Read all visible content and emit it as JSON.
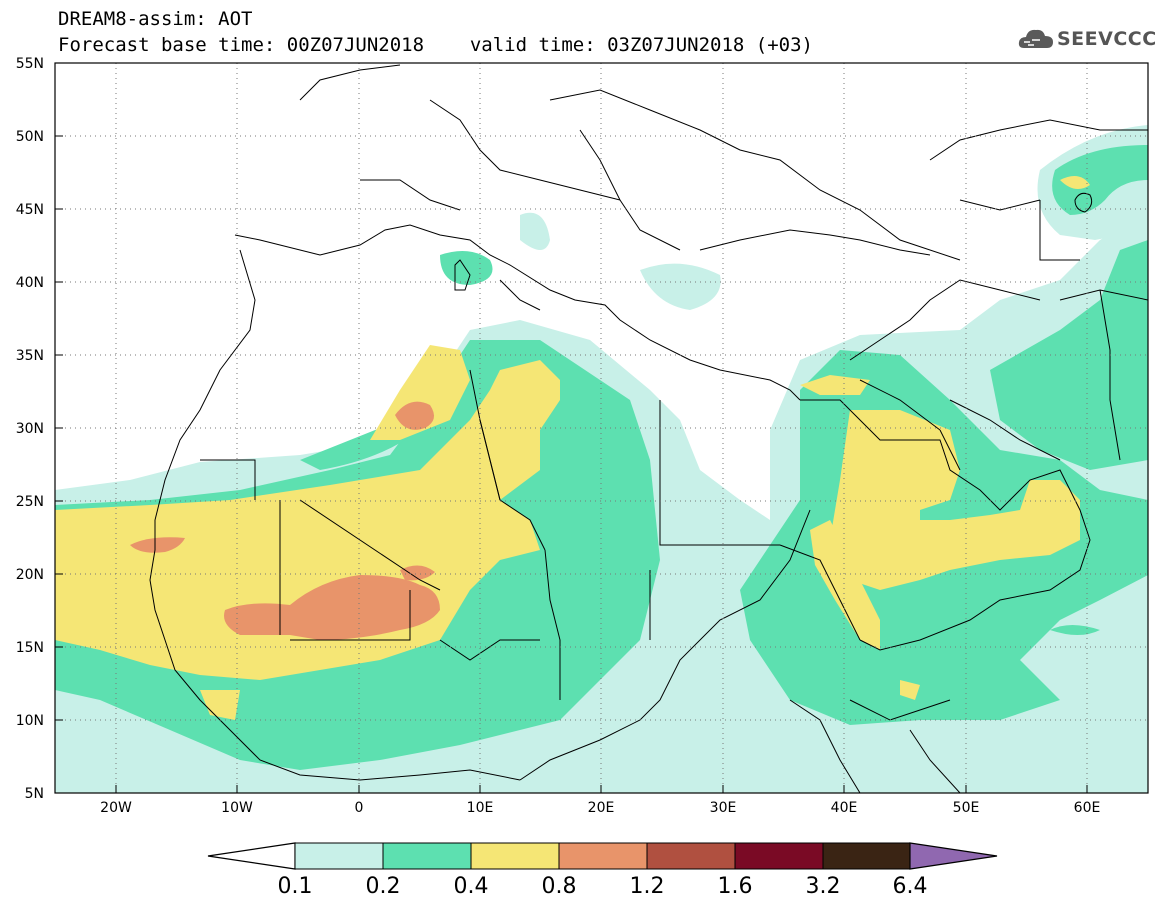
{
  "header": {
    "title": "DREAM8-assim: AOT",
    "base_time_label": "Forecast base time: 00Z07JUN2018",
    "valid_time_label": "valid time: 03Z07JUN2018 (+03)",
    "logo_text": "SEEVCCC"
  },
  "map": {
    "lon_range": [
      -25,
      65
    ],
    "lat_range": [
      5,
      55
    ],
    "lat_ticks": [
      "55N",
      "50N",
      "45N",
      "40N",
      "35N",
      "30N",
      "25N",
      "20N",
      "15N",
      "10N",
      "5N"
    ],
    "lon_ticks": [
      "20W",
      "10W",
      "0",
      "10E",
      "20E",
      "30E",
      "40E",
      "50E",
      "60E"
    ]
  },
  "legend": {
    "labels": [
      "0.1",
      "0.2",
      "0.4",
      "0.8",
      "1.2",
      "1.6",
      "3.2",
      "6.4"
    ],
    "colors": {
      "c0": "#ffffff",
      "c1": "#c8f0e8",
      "c2": "#5de0b0",
      "c3": "#f5e675",
      "c4": "#e8946a",
      "c5": "#b05040",
      "c6": "#7a0a25",
      "c7": "#3a2414",
      "c8": "#9068b0"
    }
  }
}
